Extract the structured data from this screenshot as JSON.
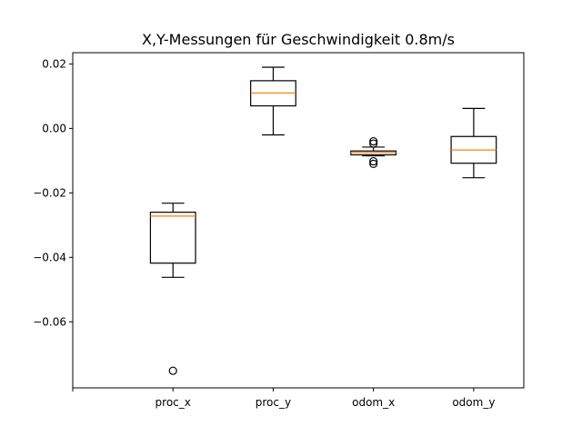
{
  "chart_data": {
    "type": "boxplot",
    "title": "X,Y-Messungen für Geschwindigkeit 0.8m/s",
    "xlabel": "",
    "ylabel": "",
    "ylim": [
      -0.0805,
      0.0235
    ],
    "yticks": [
      -0.06,
      -0.04,
      -0.02,
      0.0,
      0.02
    ],
    "ytick_labels": [
      "−0.06",
      "−0.04",
      "−0.02",
      "0.00",
      "0.02"
    ],
    "x_ticks": [
      0,
      1,
      2,
      3,
      4
    ],
    "x_tick_labels": [
      "",
      "proc_x",
      "proc_y",
      "odom_x",
      "odom_y"
    ],
    "xlim": [
      0,
      4.5
    ],
    "grid": false,
    "box_color": "#000000",
    "median_color": "#ff7f0e",
    "series": [
      {
        "name": "proc_x",
        "x": 1,
        "whislo": -0.0462,
        "q1": -0.0418,
        "med": -0.0272,
        "q3": -0.026,
        "whishi": -0.0232,
        "fliers": [
          -0.0752
        ]
      },
      {
        "name": "proc_y",
        "x": 2,
        "whislo": -0.002,
        "q1": 0.007,
        "med": 0.011,
        "q3": 0.0148,
        "whishi": 0.019,
        "fliers": []
      },
      {
        "name": "odom_x",
        "x": 3,
        "whislo": -0.0085,
        "q1": -0.0082,
        "med": -0.0075,
        "q3": -0.007,
        "whishi": -0.0058,
        "fliers": [
          -0.004,
          -0.0047,
          -0.0102,
          -0.011
        ]
      },
      {
        "name": "odom_y",
        "x": 4,
        "whislo": -0.0153,
        "q1": -0.0108,
        "med": -0.0067,
        "q3": -0.0025,
        "whishi": 0.0062,
        "fliers": []
      }
    ]
  }
}
